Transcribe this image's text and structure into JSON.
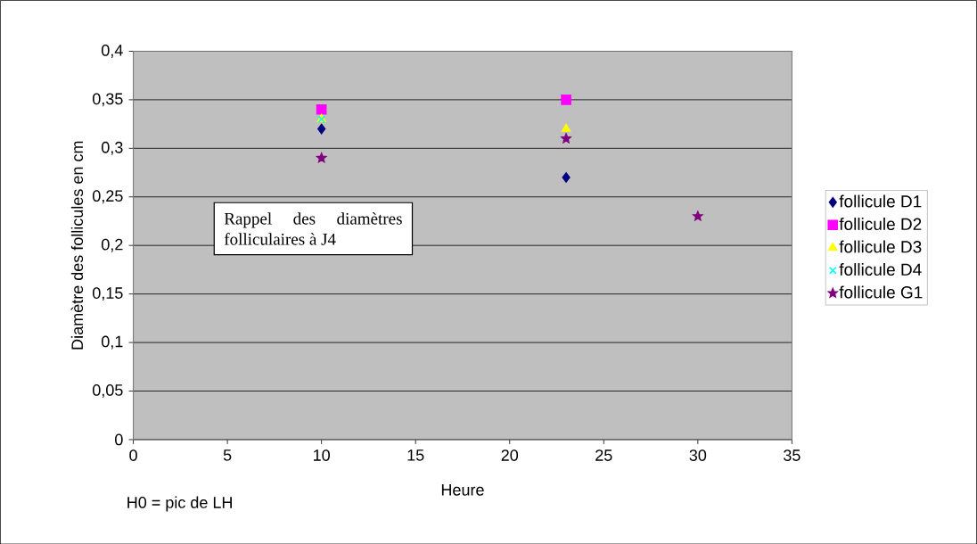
{
  "chart_data": {
    "type": "scatter",
    "xlabel": "Heure",
    "ylabel": "Diamètre des follicules en cm",
    "xlim": [
      0,
      35
    ],
    "xticks": [
      0,
      5,
      10,
      15,
      20,
      25,
      30,
      35
    ],
    "ylim": [
      0,
      0.4
    ],
    "yticks": [
      0,
      {
        "value": 0.05,
        "label": "0,05"
      },
      {
        "value": 0.1,
        "label": "0,1"
      },
      {
        "value": 0.15,
        "label": "0,15"
      },
      {
        "value": 0.2,
        "label": "0,2"
      },
      {
        "value": 0.25,
        "label": "0,25"
      },
      {
        "value": 0.3,
        "label": "0,3"
      },
      {
        "value": 0.35,
        "label": "0,35"
      },
      {
        "value": 0.4,
        "label": "0,4"
      }
    ],
    "grid": "y",
    "legend": "right",
    "series": [
      {
        "name": "follicule D1",
        "color": "#000080",
        "marker": "diamond",
        "x": [
          10,
          23
        ],
        "values": [
          0.32,
          0.27
        ]
      },
      {
        "name": "follicule D2",
        "color": "#ff00ff",
        "marker": "square",
        "x": [
          10,
          23
        ],
        "values": [
          0.34,
          0.35
        ]
      },
      {
        "name": "follicule D3",
        "color": "#ffff00",
        "marker": "triangle",
        "x": [
          10,
          23
        ],
        "values": [
          0.33,
          0.32
        ]
      },
      {
        "name": "follicule D4",
        "color": "#00ffff",
        "marker": "cross",
        "x": [
          10
        ],
        "values": [
          0.33
        ]
      },
      {
        "name": "follicule G1",
        "color": "#800080",
        "marker": "star",
        "x": [
          10,
          23,
          30
        ],
        "values": [
          0.29,
          0.31,
          0.23
        ]
      }
    ],
    "annotations": [
      "Rappel des diamètres folliculaires à J4",
      "H0 = pic de LH"
    ]
  }
}
